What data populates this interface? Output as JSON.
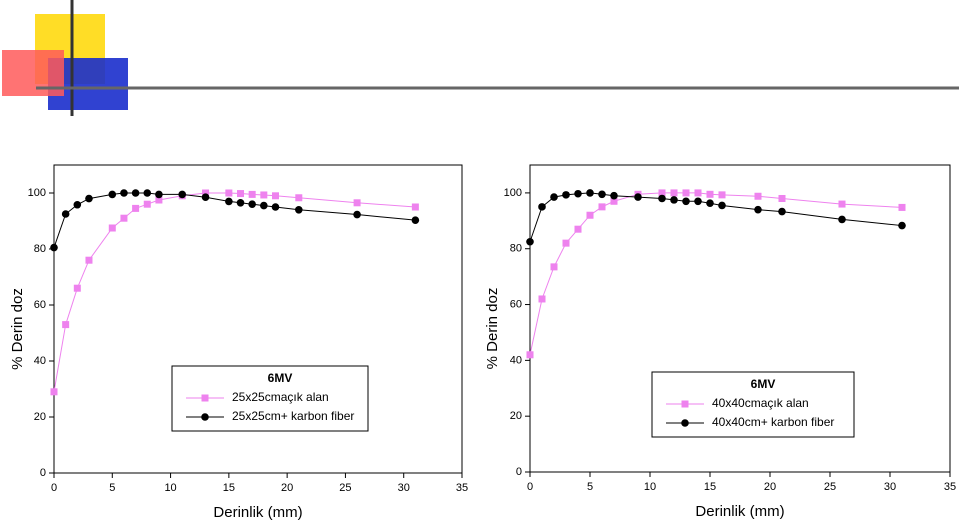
{
  "chart_data": [
    {
      "type": "line",
      "x_label": "Derinlik (mm)",
      "y_label": "% Derin doz",
      "legend_title": "6MV",
      "x": [
        0,
        1,
        2,
        3,
        5,
        6,
        7,
        8,
        9,
        11,
        13,
        15,
        16,
        17,
        18,
        19,
        21,
        26,
        31
      ],
      "xlim": [
        0,
        35
      ],
      "xticks": [
        0,
        5,
        10,
        15,
        20,
        25,
        30,
        35
      ],
      "ylim": [
        0,
        110
      ],
      "yticks": [
        0,
        20,
        40,
        60,
        80,
        100
      ],
      "series": [
        {
          "name": "25x25cmaçık alan",
          "color": "#ee82ee",
          "marker": "square",
          "values": [
            29,
            53,
            66,
            76,
            87.5,
            91,
            94.5,
            96,
            97.5,
            99,
            100,
            100,
            99.8,
            99.5,
            99.3,
            99,
            98.3,
            96.5,
            95
          ]
        },
        {
          "name": "25x25cm+ karbon fiber",
          "color": "#000000",
          "marker": "circle",
          "values": [
            80.5,
            92.5,
            95.8,
            98,
            99.5,
            100,
            100,
            100,
            99.5,
            99.5,
            98.5,
            97,
            96.5,
            96,
            95.5,
            95,
            94,
            92.3,
            90.3
          ]
        }
      ]
    },
    {
      "type": "line",
      "x_label": "Derinlik (mm)",
      "y_label": "% Derin doz",
      "legend_title": "6MV",
      "x": [
        0,
        1,
        2,
        3,
        4,
        5,
        6,
        7,
        9,
        11,
        12,
        13,
        14,
        15,
        16,
        19,
        21,
        26,
        31
      ],
      "xlim": [
        0,
        35
      ],
      "xticks": [
        0,
        5,
        10,
        15,
        20,
        25,
        30,
        35
      ],
      "ylim": [
        0,
        110
      ],
      "yticks": [
        0,
        20,
        40,
        60,
        80,
        100
      ],
      "series": [
        {
          "name": "40x40cmaçık alan",
          "color": "#ee82ee",
          "marker": "square",
          "values": [
            42,
            62,
            73.5,
            82,
            87,
            92,
            95,
            97,
            99.5,
            100,
            100,
            100,
            100,
            99.5,
            99.3,
            98.8,
            98,
            96,
            94.8
          ]
        },
        {
          "name": "40x40cm+ karbon fiber",
          "color": "#000000",
          "marker": "circle",
          "values": [
            82.5,
            95,
            98.5,
            99.3,
            99.7,
            100,
            99.5,
            99,
            98.5,
            98,
            97.5,
            97,
            97,
            96.3,
            95.5,
            94,
            93.3,
            90.5,
            88.3
          ]
        }
      ]
    }
  ]
}
